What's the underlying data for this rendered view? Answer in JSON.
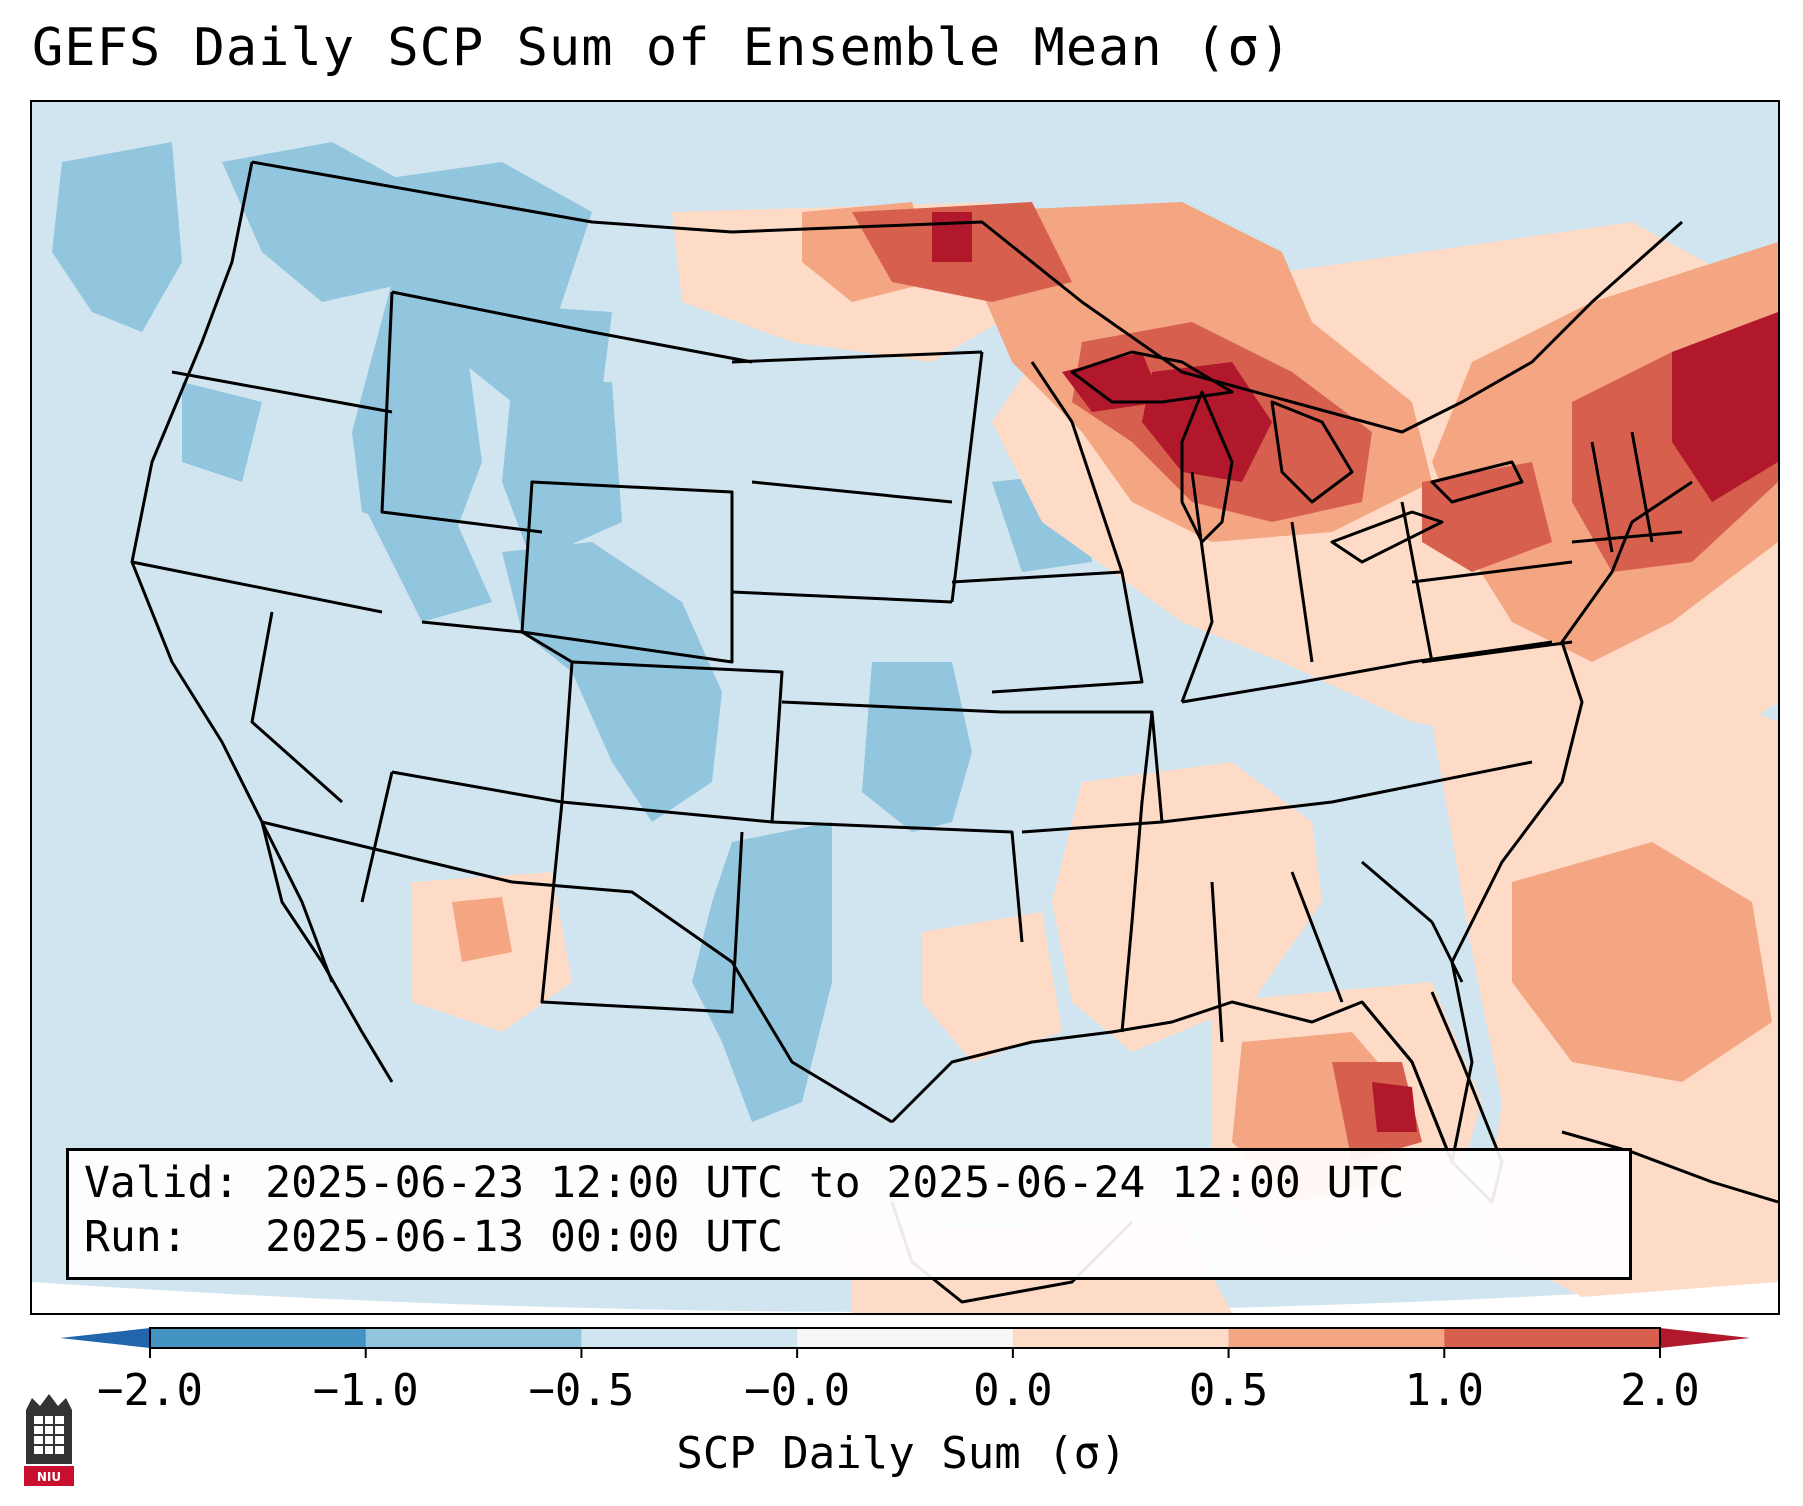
{
  "title": "GEFS Daily SCP Sum of Ensemble Mean (σ)",
  "valid_line": "Valid: 2025-06-23 12:00 UTC to 2025-06-24 12:00 UTC",
  "run_line": "Run:   2025-06-13 00:00 UTC",
  "colorbar": {
    "label": "SCP Daily Sum (σ)",
    "ticks": [
      "−2.0",
      "−1.0",
      "−0.5",
      "−0.0",
      "0.0",
      "0.5",
      "1.0",
      "2.0"
    ],
    "bin_colors": [
      "#4393c3",
      "#92c5de",
      "#d1e5f0",
      "#f7f7f7",
      "#fddbc7",
      "#f4a582",
      "#d6604d"
    ],
    "extend_low_color": "#2166ac",
    "extend_high_color": "#b2182b"
  },
  "logo": {
    "text": "NIU"
  },
  "map": {
    "region": "Contiguous United States",
    "base_color": "#d1e5f0",
    "anomaly_regions": [
      {
        "name": "Great Lakes / Upper Midwest",
        "sigma": 1.5
      },
      {
        "name": "New England / Northeast",
        "sigma": 1.5
      },
      {
        "name": "Florida / Eastern Gulf",
        "sigma": 1.0
      },
      {
        "name": "Western Atlantic",
        "sigma": 0.5
      },
      {
        "name": "Pacific Northwest",
        "sigma": -0.75
      },
      {
        "name": "Northern Rockies",
        "sigma": -0.75
      },
      {
        "name": "Texas / Southern Plains",
        "sigma": -0.6
      }
    ]
  }
}
